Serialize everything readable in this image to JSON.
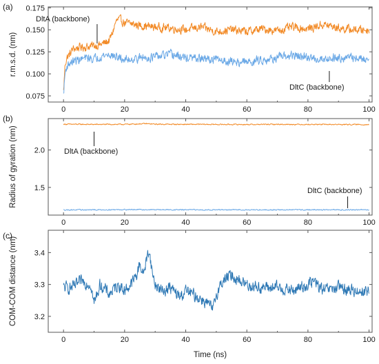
{
  "colors": {
    "dlta": "#f28a26",
    "dltc": "#6aa8e6",
    "comcom": "#2c77b4",
    "axis": "#555555"
  },
  "chart_data": [
    {
      "type": "line",
      "panel_label": "(a)",
      "ylabel": "r.m.s.d. (nm)",
      "xlabel": "",
      "xlim": [
        -5,
        101
      ],
      "ylim": [
        0.068,
        0.176
      ],
      "xticks": [
        0,
        20,
        40,
        60,
        80,
        100
      ],
      "yticks": [
        0.075,
        0.1,
        0.125,
        0.15,
        0.175
      ],
      "ytick_labels": [
        "0.075",
        "0.100",
        "0.125",
        "0.150",
        "0.175"
      ],
      "series": [
        {
          "name": "DltA (backbone)",
          "color_key": "dlta",
          "x": [
            0,
            0.5,
            1,
            2,
            3,
            5,
            8,
            10,
            12,
            14,
            15,
            16,
            17,
            18,
            20,
            25,
            30,
            35,
            40,
            45,
            50,
            55,
            60,
            65,
            70,
            75,
            80,
            85,
            90,
            95,
            100
          ],
          "y": [
            0.08,
            0.11,
            0.118,
            0.122,
            0.128,
            0.13,
            0.131,
            0.132,
            0.133,
            0.136,
            0.138,
            0.146,
            0.158,
            0.162,
            0.158,
            0.155,
            0.153,
            0.152,
            0.15,
            0.153,
            0.148,
            0.15,
            0.148,
            0.151,
            0.149,
            0.153,
            0.151,
            0.156,
            0.152,
            0.15,
            0.15
          ],
          "noise": 0.004
        },
        {
          "name": "DltC (backbone)",
          "color_key": "dltc",
          "x": [
            0,
            0.5,
            1,
            2,
            3,
            5,
            8,
            10,
            12,
            15,
            18,
            20,
            25,
            30,
            35,
            40,
            45,
            50,
            55,
            60,
            65,
            70,
            75,
            80,
            85,
            90,
            95,
            100
          ],
          "y": [
            0.076,
            0.1,
            0.108,
            0.112,
            0.114,
            0.116,
            0.118,
            0.117,
            0.12,
            0.122,
            0.118,
            0.116,
            0.118,
            0.119,
            0.122,
            0.118,
            0.117,
            0.116,
            0.114,
            0.113,
            0.116,
            0.118,
            0.121,
            0.118,
            0.117,
            0.119,
            0.118,
            0.116
          ],
          "noise": 0.004
        }
      ],
      "annotations": [
        {
          "text": "DltA (backbone)",
          "series": "DltA (backbone)",
          "x": 11
        },
        {
          "text": "DltC (backbone)",
          "series": "DltC (backbone)",
          "x": 87
        }
      ]
    },
    {
      "type": "line",
      "panel_label": "(b)",
      "ylabel": "Radius of gyration (nm)",
      "xlabel": "",
      "xlim": [
        -5,
        101
      ],
      "ylim": [
        1.13,
        2.42
      ],
      "xticks": [
        0,
        20,
        40,
        60,
        80,
        100
      ],
      "yticks": [
        1.5,
        2.0
      ],
      "ytick_labels": [
        "1.5",
        "2.0"
      ],
      "series": [
        {
          "name": "DltA (backbone)",
          "color_key": "dlta",
          "x": [
            0,
            10,
            20,
            27,
            30,
            40,
            50,
            60,
            70,
            80,
            90,
            100
          ],
          "y": [
            2.345,
            2.342,
            2.343,
            2.352,
            2.345,
            2.343,
            2.342,
            2.341,
            2.343,
            2.342,
            2.341,
            2.34
          ],
          "noise": 0.006
        },
        {
          "name": "DltC (backbone)",
          "color_key": "dltc",
          "x": [
            0,
            10,
            20,
            30,
            40,
            50,
            60,
            70,
            80,
            90,
            100
          ],
          "y": [
            1.2,
            1.2,
            1.204,
            1.202,
            1.201,
            1.2,
            1.201,
            1.2,
            1.201,
            1.2,
            1.201
          ],
          "noise": 0.006
        }
      ],
      "annotations": [
        {
          "text": "DltA (backbone)",
          "series": "DltA (backbone)",
          "x": 10
        },
        {
          "text": "DltC (backbone)",
          "series": "DltC (backbone)",
          "x": 93
        }
      ]
    },
    {
      "type": "line",
      "panel_label": "(c)",
      "ylabel": "COM-COM distance (nm)",
      "xlabel": "Time (ns)",
      "xlim": [
        -5,
        101
      ],
      "ylim": [
        3.15,
        3.47
      ],
      "xticks": [
        0,
        20,
        40,
        60,
        80,
        100
      ],
      "xtick_labels": [
        "0",
        "20",
        "40",
        "60",
        "80",
        "100"
      ],
      "yticks": [
        3.2,
        3.3,
        3.4
      ],
      "ytick_labels": [
        "3.2",
        "3.3",
        "3.4"
      ],
      "series": [
        {
          "name": "",
          "color_key": "comcom",
          "x": [
            0,
            3,
            6,
            9,
            10,
            12,
            15,
            18,
            20,
            22,
            24,
            25,
            26,
            27,
            28,
            29,
            30,
            32,
            35,
            38,
            40,
            42,
            44,
            46,
            48,
            49,
            50,
            52,
            55,
            58,
            60,
            65,
            70,
            75,
            80,
            82,
            85,
            90,
            95,
            100
          ],
          "y": [
            3.29,
            3.29,
            3.31,
            3.3,
            3.24,
            3.3,
            3.27,
            3.3,
            3.28,
            3.3,
            3.33,
            3.37,
            3.33,
            3.37,
            3.41,
            3.34,
            3.3,
            3.28,
            3.29,
            3.26,
            3.28,
            3.27,
            3.26,
            3.25,
            3.23,
            3.22,
            3.27,
            3.31,
            3.33,
            3.31,
            3.3,
            3.29,
            3.29,
            3.28,
            3.3,
            3.31,
            3.28,
            3.29,
            3.28,
            3.28
          ],
          "noise": 0.016
        }
      ],
      "annotations": []
    }
  ]
}
